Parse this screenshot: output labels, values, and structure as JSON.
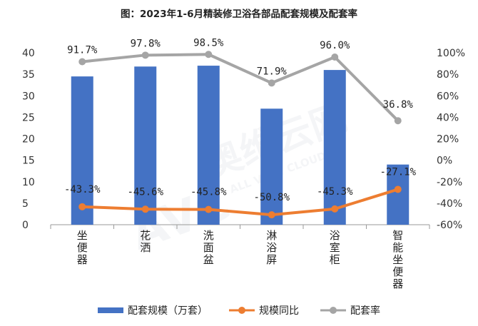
{
  "chart_data": {
    "type": "bar",
    "title": "图：2023年1-6月精装修卫浴各部品配套规模及配套率",
    "categories": [
      "坐便器",
      "花洒",
      "洗面盆",
      "淋浴屏",
      "浴室柜",
      "智能坐便器"
    ],
    "y_left": {
      "ylim": [
        0,
        40
      ],
      "ticks": [
        "0",
        "5",
        "10",
        "15",
        "20",
        "25",
        "30",
        "35",
        "40"
      ]
    },
    "y_right": {
      "ylim": [
        -60,
        100
      ],
      "ticks": [
        "-60%",
        "-40%",
        "-20%",
        "0%",
        "20%",
        "40%",
        "60%",
        "80%",
        "100%"
      ]
    },
    "grid": false,
    "legend_position": "bottom",
    "series": [
      {
        "name": "配套规模（万套）",
        "type": "bar",
        "axis": "left",
        "color": "#4472C4",
        "values": [
          34.5,
          36.8,
          37.0,
          27.0,
          36.0,
          14.0
        ]
      },
      {
        "name": "规模同比",
        "type": "line",
        "axis": "right",
        "color": "#ED7D31",
        "values": [
          -43.3,
          -45.6,
          -45.8,
          -50.8,
          -45.3,
          -27.1
        ],
        "labels": [
          "-43.3%",
          "-45.6%",
          "-45.8%",
          "-50.8%",
          "-45.3%",
          "-27.1%"
        ]
      },
      {
        "name": "配套率",
        "type": "line",
        "axis": "right",
        "color": "#A5A5A5",
        "values": [
          91.7,
          97.8,
          98.5,
          71.9,
          96.0,
          36.8
        ],
        "labels": [
          "91.7%",
          "97.8%",
          "98.5%",
          "71.9%",
          "96.0%",
          "36.8%"
        ]
      }
    ],
    "watermark": {
      "logo": "AVC",
      "text": "奥维云网",
      "subtext": "ALL VIEW CLOUD"
    }
  }
}
